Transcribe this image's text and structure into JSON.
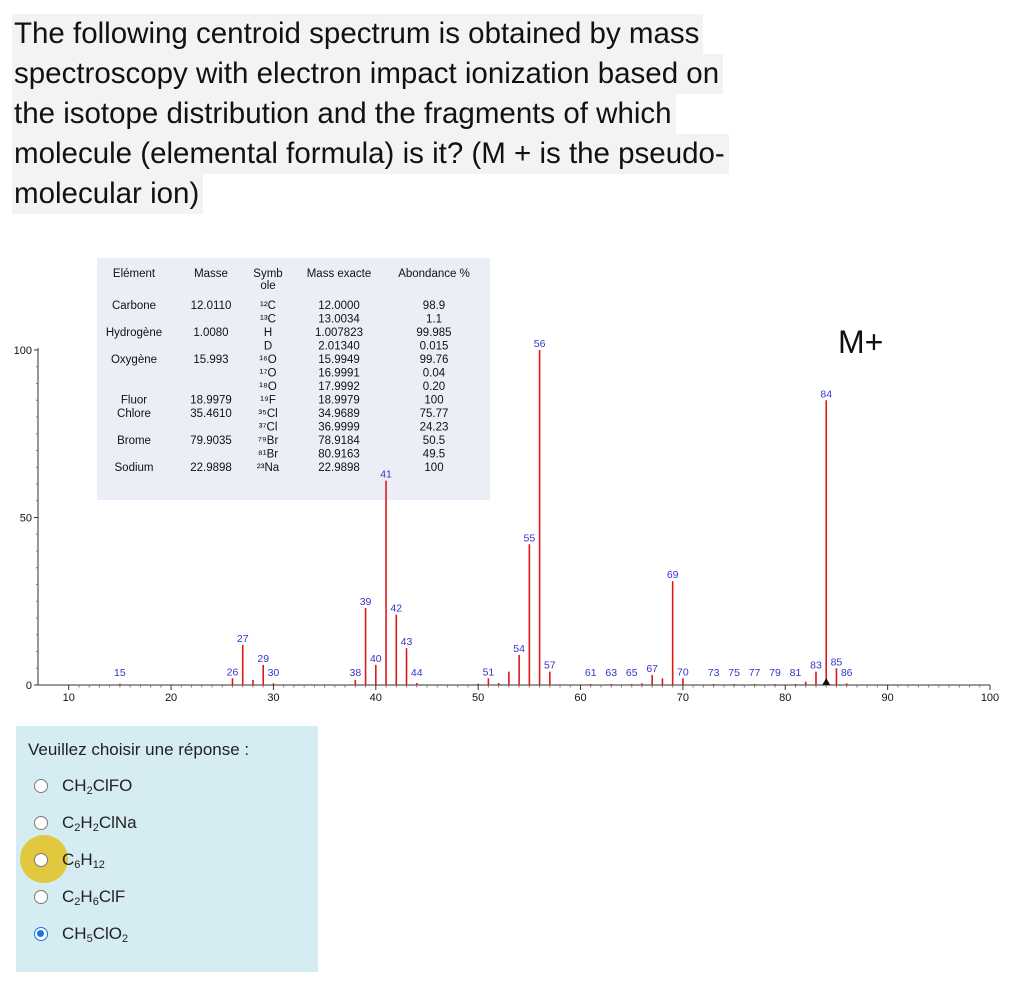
{
  "question": {
    "lines": [
      "The following centroid spectrum is obtained by mass",
      "spectroscopy with electron impact ionization based on",
      "the isotope distribution and the fragments of which",
      "molecule (elemental formula) is it? (M + is the pseudo-",
      "molecular ion)"
    ]
  },
  "table": {
    "headers": [
      "Elément",
      "Masse",
      "Symb ole",
      "Mass exacte",
      "Abondance %"
    ],
    "rows": [
      [
        "Carbone",
        "12.0110",
        "¹²C",
        "12.0000",
        "98.9"
      ],
      [
        "",
        "",
        "¹³C",
        "13.0034",
        "1.1"
      ],
      [
        "Hydrogène",
        "1.0080",
        "H",
        "1.007823",
        "99.985"
      ],
      [
        "",
        "",
        "D",
        "2.01340",
        "0.015"
      ],
      [
        "Oxygène",
        "15.993",
        "¹⁶O",
        "15.9949",
        "99.76"
      ],
      [
        "",
        "",
        "¹⁷O",
        "16.9991",
        "0.04"
      ],
      [
        "",
        "",
        "¹⁸O",
        "17.9992",
        "0.20"
      ],
      [
        "Fluor",
        "18.9979",
        "¹⁹F",
        "18.9979",
        "100"
      ],
      [
        "Chlore",
        "35.4610",
        "³⁵Cl",
        "34.9689",
        "75.77"
      ],
      [
        "",
        "",
        "³⁷Cl",
        "36.9999",
        "24.23"
      ],
      [
        "Brome",
        "79.9035",
        "⁷⁹Br",
        "78.9184",
        "50.5"
      ],
      [
        "",
        "",
        "⁸¹Br",
        "80.9163",
        "49.5"
      ],
      [
        "Sodium",
        "22.9898",
        "²³Na",
        "22.9898",
        "100"
      ]
    ]
  },
  "chart_data": {
    "type": "bar",
    "xlim": [
      7,
      100
    ],
    "ylim": [
      0,
      100
    ],
    "x_ticks": [
      10,
      20,
      30,
      40,
      50,
      60,
      70,
      80,
      90,
      100
    ],
    "y_ticks": [
      0,
      50,
      100
    ],
    "annotation": "M+",
    "peaks": [
      {
        "mz": 15,
        "intensity": 0.4,
        "label": "15"
      },
      {
        "mz": 26,
        "intensity": 2,
        "label": "26"
      },
      {
        "mz": 27,
        "intensity": 12,
        "label": "27"
      },
      {
        "mz": 28,
        "intensity": 1.5,
        "label": ""
      },
      {
        "mz": 29,
        "intensity": 6,
        "label": "29"
      },
      {
        "mz": 30,
        "intensity": 0.5,
        "label": "30"
      },
      {
        "mz": 38,
        "intensity": 1.5,
        "label": "38"
      },
      {
        "mz": 39,
        "intensity": 23,
        "label": "39"
      },
      {
        "mz": 40,
        "intensity": 6,
        "label": "40"
      },
      {
        "mz": 41,
        "intensity": 61,
        "label": "41"
      },
      {
        "mz": 42,
        "intensity": 21,
        "label": "42"
      },
      {
        "mz": 43,
        "intensity": 11,
        "label": "43"
      },
      {
        "mz": 44,
        "intensity": 0.6,
        "label": "44"
      },
      {
        "mz": 50,
        "intensity": 0.4,
        "label": ""
      },
      {
        "mz": 51,
        "intensity": 2,
        "label": "51"
      },
      {
        "mz": 52,
        "intensity": 0.6,
        "label": ""
      },
      {
        "mz": 53,
        "intensity": 4,
        "label": ""
      },
      {
        "mz": 54,
        "intensity": 9,
        "label": "54"
      },
      {
        "mz": 55,
        "intensity": 42,
        "label": "55"
      },
      {
        "mz": 56,
        "intensity": 100,
        "label": "56"
      },
      {
        "mz": 57,
        "intensity": 4,
        "label": "57"
      },
      {
        "mz": 61,
        "intensity": 0.3,
        "label": "61"
      },
      {
        "mz": 63,
        "intensity": 0.3,
        "label": "63"
      },
      {
        "mz": 65,
        "intensity": 0.3,
        "label": "65"
      },
      {
        "mz": 66,
        "intensity": 0.5,
        "label": ""
      },
      {
        "mz": 67,
        "intensity": 3,
        "label": "67"
      },
      {
        "mz": 68,
        "intensity": 2,
        "label": ""
      },
      {
        "mz": 69,
        "intensity": 31,
        "label": "69"
      },
      {
        "mz": 70,
        "intensity": 2,
        "label": "70"
      },
      {
        "mz": 73,
        "intensity": 0.3,
        "label": "73"
      },
      {
        "mz": 75,
        "intensity": 0.3,
        "label": "75"
      },
      {
        "mz": 77,
        "intensity": 0.3,
        "label": "77"
      },
      {
        "mz": 79,
        "intensity": 0.3,
        "label": "79"
      },
      {
        "mz": 81,
        "intensity": 0.3,
        "label": "81"
      },
      {
        "mz": 82,
        "intensity": 1,
        "label": ""
      },
      {
        "mz": 83,
        "intensity": 4,
        "label": "83"
      },
      {
        "mz": 84,
        "intensity": 85,
        "label": "84"
      },
      {
        "mz": 85,
        "intensity": 5,
        "label": "85"
      },
      {
        "mz": 86,
        "intensity": 0.5,
        "label": "86"
      }
    ]
  },
  "answers": {
    "prompt": "Veuillez choisir une réponse :",
    "options": [
      {
        "pre": "CH",
        "s1": "2",
        "mid": "ClFO",
        "s2": "",
        "post": "",
        "selected": false
      },
      {
        "pre": "C",
        "s1": "2",
        "mid": "H",
        "s2": "2",
        "post": "ClNa",
        "selected": false
      },
      {
        "pre": "C",
        "s1": "6",
        "mid": "H",
        "s2": "12",
        "post": "",
        "selected": false
      },
      {
        "pre": "C",
        "s1": "2",
        "mid": "H",
        "s2": "6",
        "post": "ClF",
        "selected": false
      },
      {
        "pre": "CH",
        "s1": "5",
        "mid": "ClO",
        "s2": "2",
        "post": "",
        "selected": true
      }
    ]
  },
  "colors": {
    "peak": "#dd1a1a",
    "label": "#3434c8",
    "highlight": "#e2c42a",
    "answer_bg": "#d6ecf3",
    "radio_selected": "#1a73e8"
  }
}
